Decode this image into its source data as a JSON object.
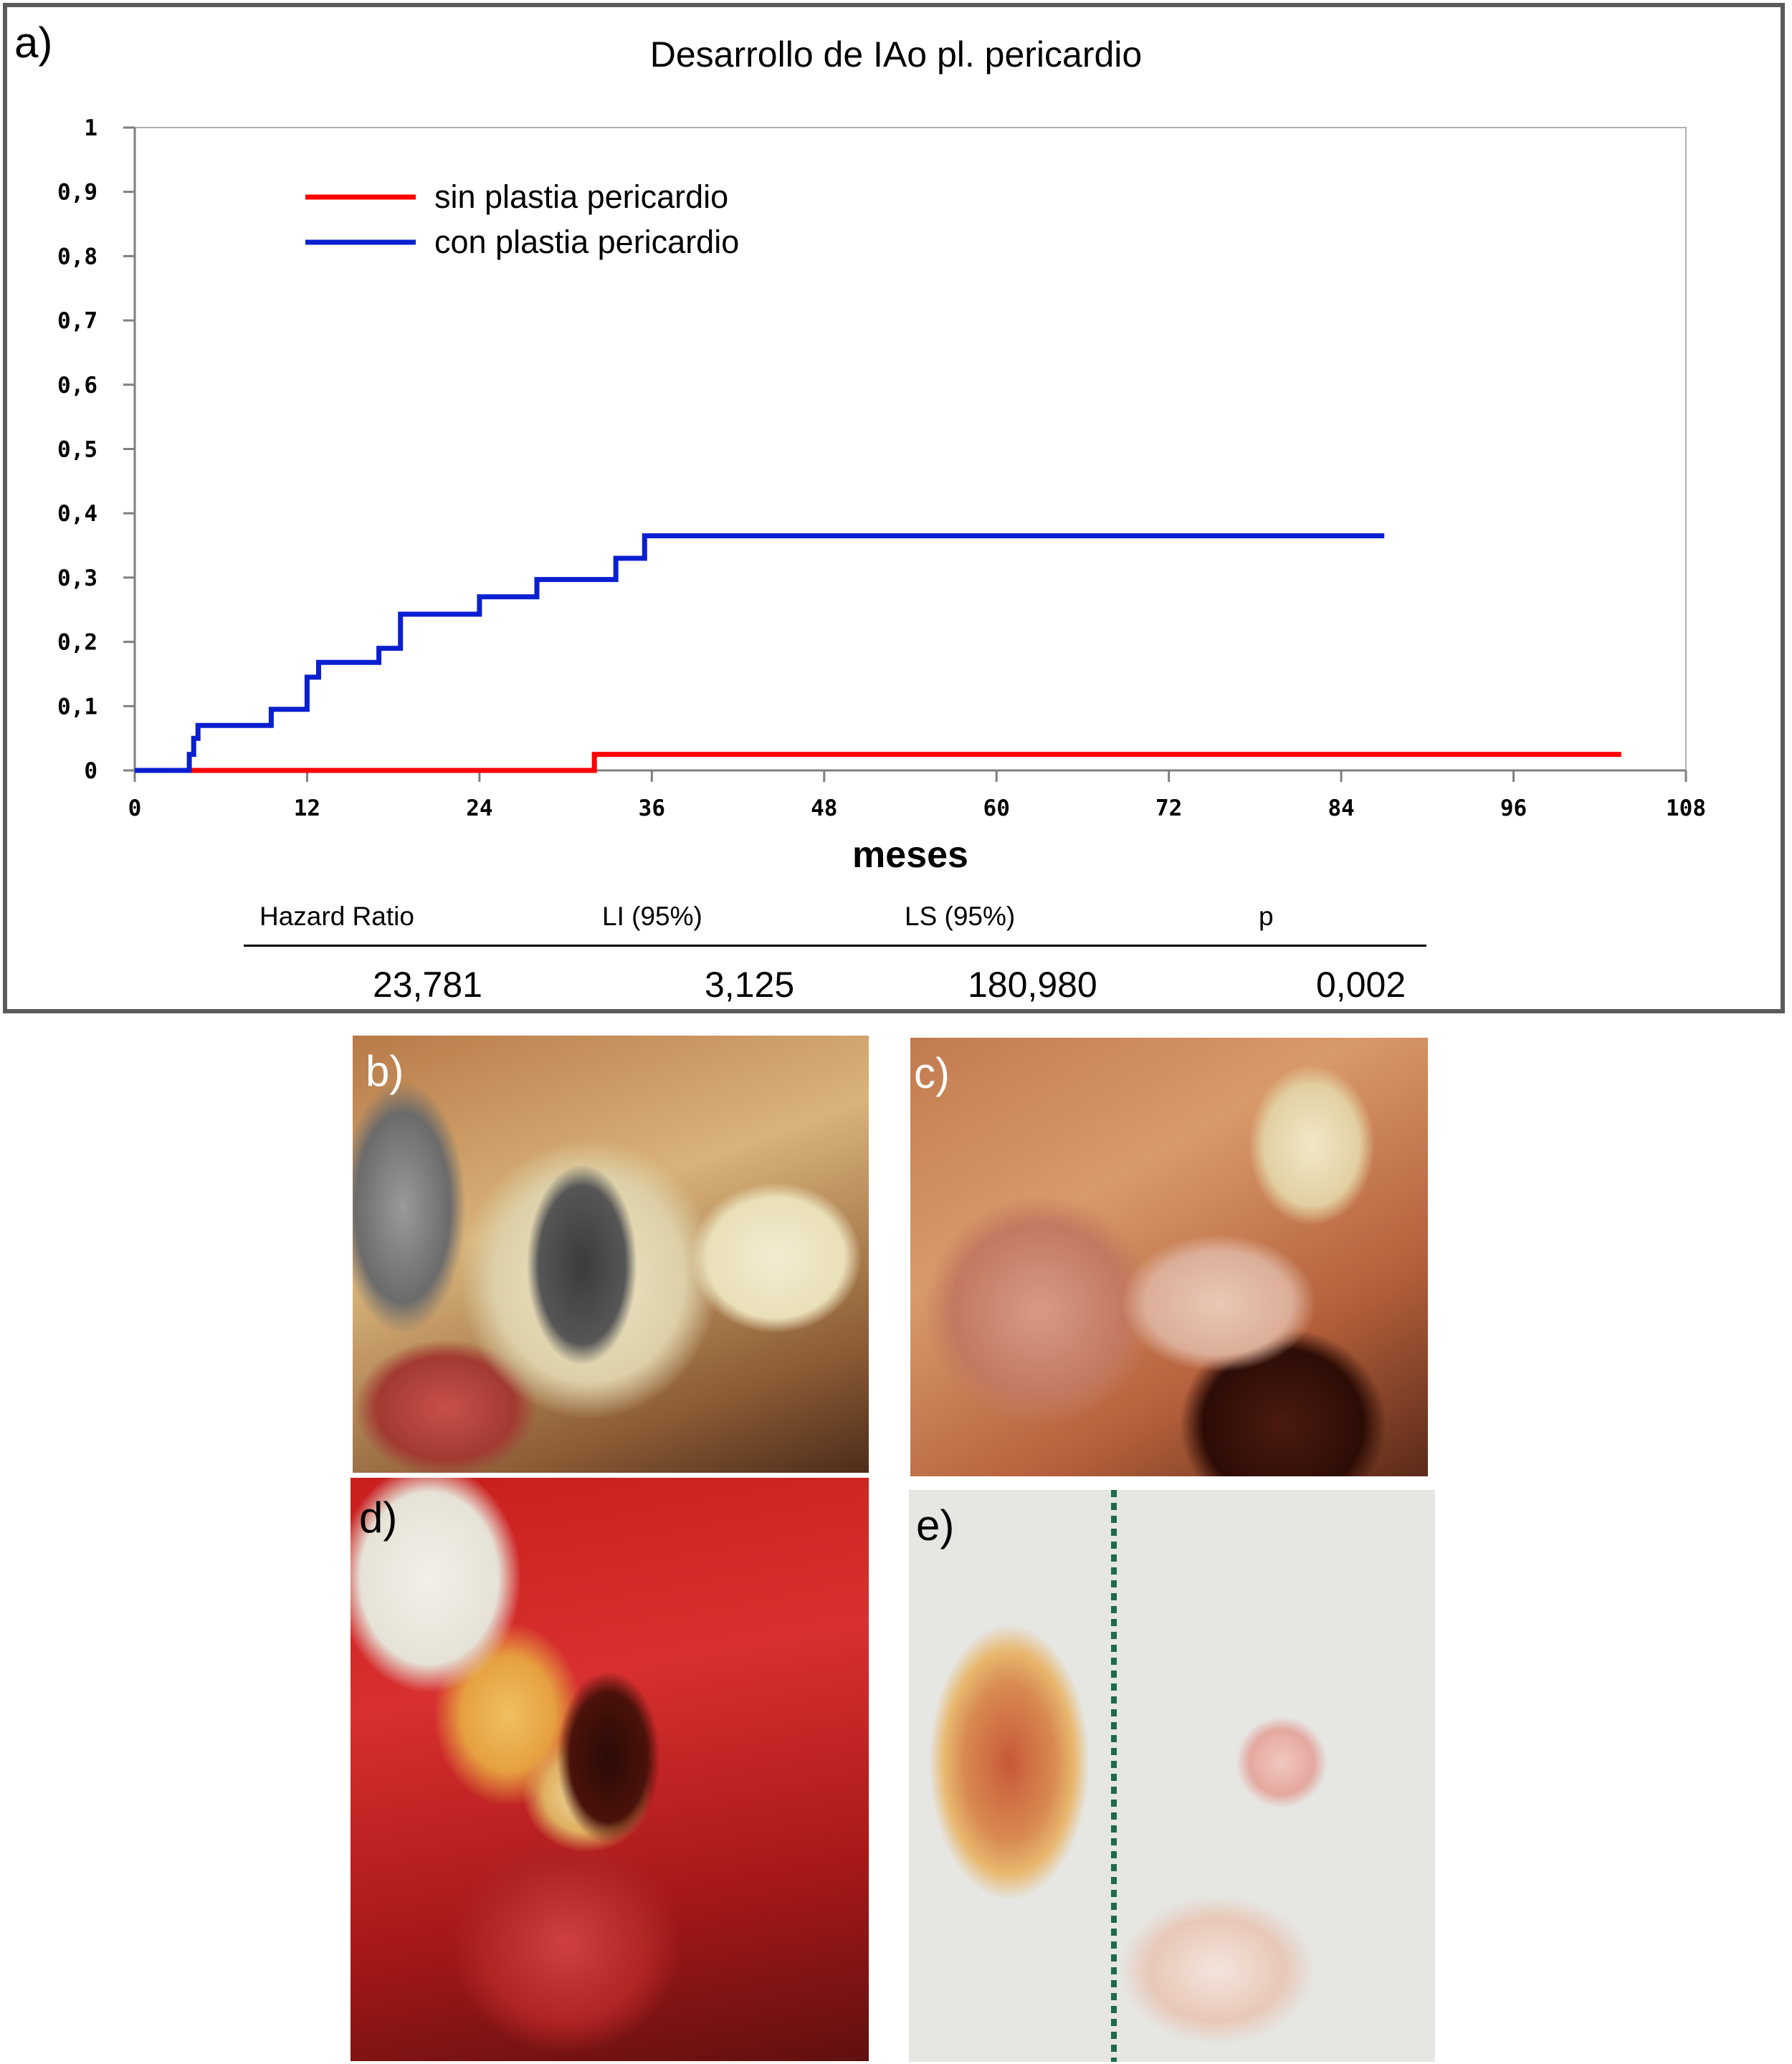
{
  "panels": {
    "a": "a)",
    "b": "b)",
    "c": "c)",
    "d": "d)",
    "e": "e)"
  },
  "stats_table": {
    "headers": [
      "Hazard Ratio",
      "LI (95%)",
      "LS (95%)",
      "p"
    ],
    "values": [
      "23,781",
      "3,125",
      "180,980",
      "0,002"
    ]
  },
  "colors": {
    "sin_plastia": "#ff0000",
    "con_plastia": "#0a1fd0",
    "axis": "#7f7f7f",
    "text": "#000000"
  },
  "chart_data": {
    "type": "line",
    "step": true,
    "title": "Desarrollo de IAo pl. pericardio",
    "xlabel": "meses",
    "ylabel": "",
    "xlim": [
      0,
      108
    ],
    "ylim": [
      0,
      1
    ],
    "x_ticks": [
      "0",
      "12",
      "24",
      "36",
      "48",
      "60",
      "72",
      "84",
      "96",
      "108"
    ],
    "y_ticks": [
      "0",
      "0,1",
      "0,2",
      "0,3",
      "0,4",
      "0,5",
      "0,6",
      "0,7",
      "0,8",
      "0,9",
      "1"
    ],
    "grid": false,
    "legend_position": "top-left",
    "series": [
      {
        "name": "sin plastia pericardio",
        "color": "#ff0000",
        "points": [
          [
            0,
            0
          ],
          [
            32,
            0
          ],
          [
            32,
            0.025
          ],
          [
            103.5,
            0.025
          ]
        ]
      },
      {
        "name": "con plastia pericardio",
        "color": "#0a1fd0",
        "points": [
          [
            0,
            0
          ],
          [
            3.8,
            0
          ],
          [
            3.8,
            0.025
          ],
          [
            4.1,
            0.025
          ],
          [
            4.1,
            0.05
          ],
          [
            4.4,
            0.05
          ],
          [
            4.4,
            0.07
          ],
          [
            9.5,
            0.07
          ],
          [
            9.5,
            0.095
          ],
          [
            12,
            0.095
          ],
          [
            12,
            0.145
          ],
          [
            12.8,
            0.145
          ],
          [
            12.8,
            0.168
          ],
          [
            17,
            0.168
          ],
          [
            17,
            0.19
          ],
          [
            18.5,
            0.19
          ],
          [
            18.5,
            0.243
          ],
          [
            24,
            0.243
          ],
          [
            24,
            0.27
          ],
          [
            28,
            0.27
          ],
          [
            28,
            0.297
          ],
          [
            33.5,
            0.297
          ],
          [
            33.5,
            0.33
          ],
          [
            35.5,
            0.33
          ],
          [
            35.5,
            0.365
          ],
          [
            87,
            0.365
          ]
        ]
      }
    ]
  }
}
